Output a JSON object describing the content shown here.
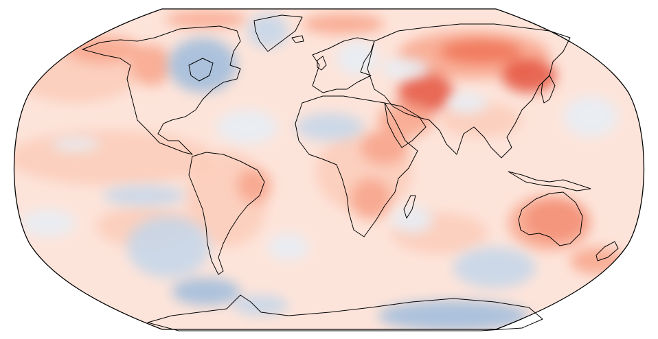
{
  "map": {
    "projection": "robinson",
    "colors": {
      "background": "#fde4da",
      "warm_light": "#fbcbb8",
      "warm_mid": "#f7a187",
      "warm_strong": "#ef6f52",
      "warm_hot": "#e34a33",
      "cool_light": "#e6eef7",
      "cool_mid": "#c3d6ea",
      "cool_strong": "#9ebcdc",
      "coastline": "#000000",
      "frame": "#000000"
    },
    "anomaly_regions": [
      {
        "name": "siberia-warm",
        "kind": "warm_hot"
      },
      {
        "name": "central-asia-warm",
        "kind": "warm_hot"
      },
      {
        "name": "australia-warm",
        "kind": "warm_hot"
      },
      {
        "name": "canada-cool",
        "kind": "cool_strong"
      },
      {
        "name": "sahara-cool",
        "kind": "cool_mid"
      },
      {
        "name": "southern-ocean-cool",
        "kind": "cool_mid"
      },
      {
        "name": "north-atlantic-cool",
        "kind": "cool_light"
      }
    ]
  }
}
